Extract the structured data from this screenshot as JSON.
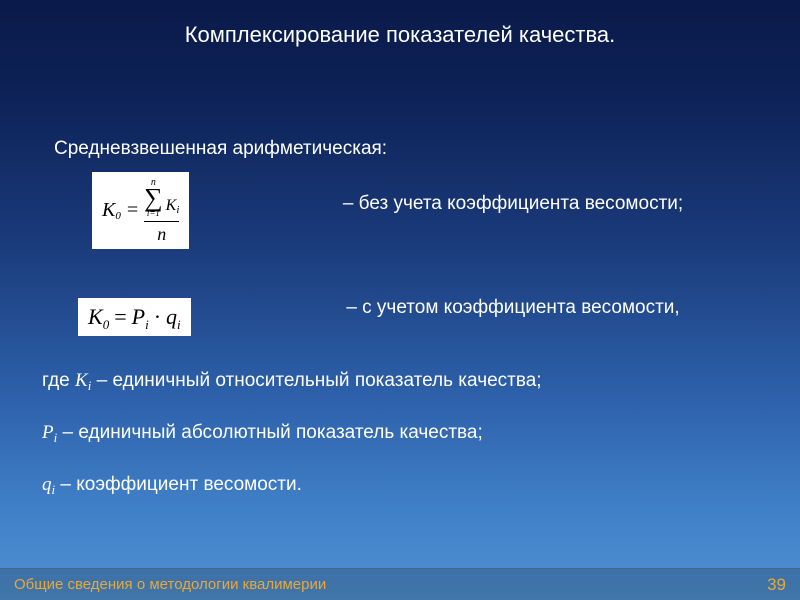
{
  "title": "Комплексирование показателей качества.",
  "subtitle": "Средневзвешенная арифметическая:",
  "formula1": {
    "lhs_var": "K",
    "lhs_sub": "0",
    "sum_upper": "n",
    "sum_lower": "i=1",
    "sum_term_var": "K",
    "sum_term_sub": "i",
    "denominator": "n"
  },
  "desc1": "– без учета коэффициента весомости;",
  "formula2": {
    "lhs_var": "K",
    "lhs_sub": "0",
    "p_var": "P",
    "p_sub": "i",
    "q_var": "q",
    "q_sub": "i"
  },
  "desc2": "– с учетом коэффициента весомости,",
  "def1": {
    "prefix": "где ",
    "var": "K",
    "sub": "i",
    "text": " – единичный относительный показатель качества;"
  },
  "def2": {
    "var": "P",
    "sub": "i",
    "text": " – единичный абсолютный показатель качества;"
  },
  "def3": {
    "var": "q",
    "sub": "i",
    "text": " – коэффициент весомости."
  },
  "footer": "Общие сведения о методологии квалимерии",
  "page": "39",
  "colors": {
    "bg_top": "#0a1a4a",
    "bg_bottom": "#5090d0",
    "text": "#ffffff",
    "accent": "#e8a838",
    "formula_bg": "#ffffff",
    "formula_text": "#000000"
  }
}
